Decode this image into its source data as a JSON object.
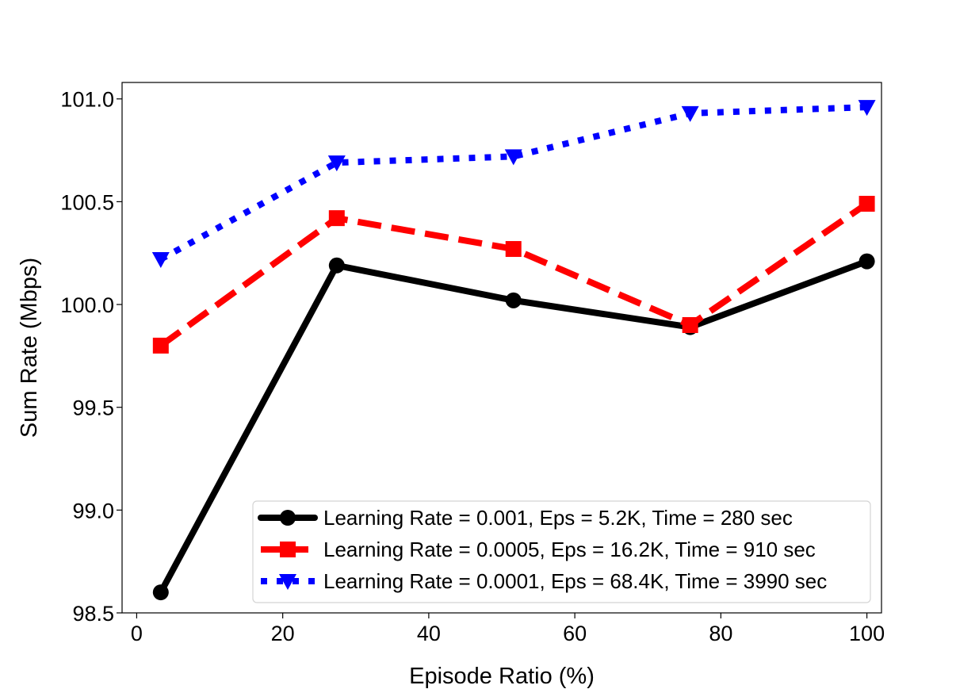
{
  "chart_data": {
    "type": "line",
    "title": "",
    "xlabel": "Episode Ratio (%)",
    "ylabel": "Sum Rate (Mbps)",
    "xlim": [
      -2,
      102
    ],
    "ylim": [
      98.5,
      101.08
    ],
    "xticks": [
      0,
      20,
      40,
      60,
      80,
      100
    ],
    "xtick_labels": [
      "0",
      "20",
      "40",
      "60",
      "80",
      "100"
    ],
    "yticks": [
      98.5,
      99.0,
      99.5,
      100.0,
      100.5,
      101.0
    ],
    "ytick_labels": [
      "98.5",
      "99.0",
      "99.5",
      "100.0",
      "100.5",
      "101.0"
    ],
    "grid": false,
    "legend_position": "lower-right",
    "series": [
      {
        "name": "Learning Rate = 0.001, Eps = 5.2K, Time = 280 sec",
        "color": "#000000",
        "line_style": "solid",
        "marker": "circle",
        "x": [
          3.3,
          27.4,
          51.6,
          75.8,
          100
        ],
        "y": [
          98.6,
          100.19,
          100.02,
          99.89,
          100.21
        ]
      },
      {
        "name": "Learning Rate = 0.0005, Eps = 16.2K, Time = 910 sec",
        "color": "#ff0000",
        "line_style": "dashed",
        "marker": "square",
        "x": [
          3.3,
          27.4,
          51.6,
          75.8,
          100
        ],
        "y": [
          99.8,
          100.42,
          100.27,
          99.9,
          100.49
        ]
      },
      {
        "name": "Learning Rate = 0.0001, Eps = 68.4K, Time = 3990 sec",
        "color": "#0000ff",
        "line_style": "dotted",
        "marker": "triangle-down",
        "x": [
          3.3,
          27.4,
          51.6,
          75.8,
          100
        ],
        "y": [
          100.22,
          100.69,
          100.72,
          100.93,
          100.96
        ]
      }
    ]
  }
}
